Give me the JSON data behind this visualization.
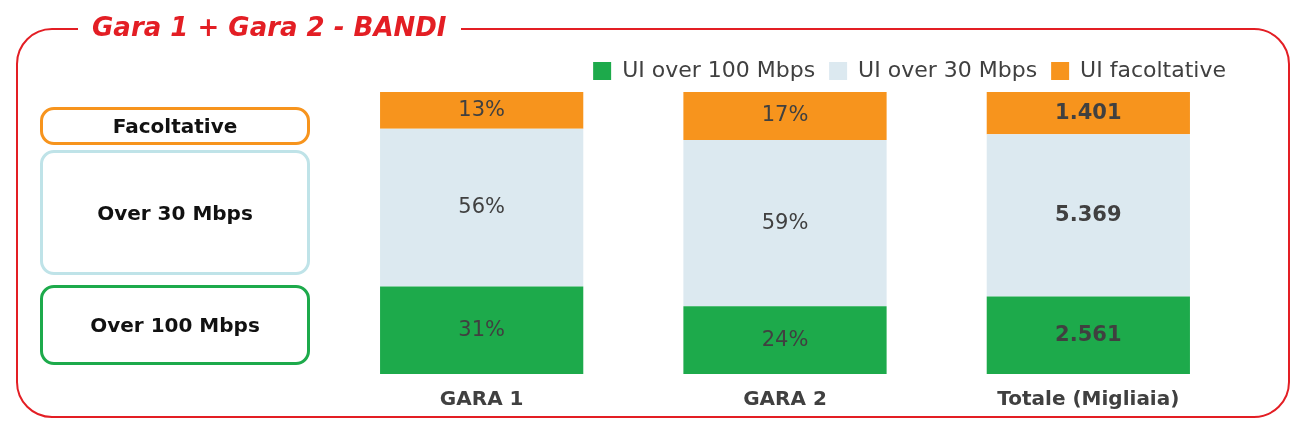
{
  "chart_data": {
    "type": "bar",
    "title": "Gara 1 + Gara 2 - BANDI",
    "stacked": true,
    "legend": "top right",
    "grid": false,
    "tick_labels": "x",
    "categories": [
      "GARA 1",
      "GARA 2",
      "Totale (Migliaia)"
    ],
    "series": [
      {
        "name": "UI over 100 Mbps",
        "color": "#1daa4b",
        "values": [
          31,
          24,
          null
        ],
        "value_labels": [
          "31%",
          "24%",
          null
        ]
      },
      {
        "name": "UI over 30 Mbps",
        "color": "#dce9f0",
        "values": [
          56,
          59,
          null
        ],
        "value_labels": [
          "56%",
          "59%",
          null
        ]
      },
      {
        "name": "UI facoltative",
        "color": "#f7941d",
        "values": [
          13,
          17,
          null
        ],
        "value_labels": [
          "13%",
          "17%",
          null
        ]
      },
      {
        "color": "#1daa4b",
        "axis": "y2",
        "values": [
          null,
          null,
          2561
        ],
        "value_labels": [
          null,
          null,
          "2.561"
        ]
      },
      {
        "color": "#dce9f0",
        "axis": "y2",
        "values": [
          null,
          null,
          5369
        ],
        "value_labels": [
          null,
          null,
          "5.369"
        ]
      },
      {
        "color": "#f7941d",
        "axis": "y2",
        "values": [
          null,
          null,
          1401
        ],
        "value_labels": [
          null,
          null,
          "1.401"
        ]
      }
    ],
    "ylim": [
      0,
      100
    ],
    "y2lim": [
      0,
      9331
    ],
    "annotations": [
      "Facoltative",
      "Over 30 Mbps",
      "Over 100 Mbps"
    ]
  }
}
